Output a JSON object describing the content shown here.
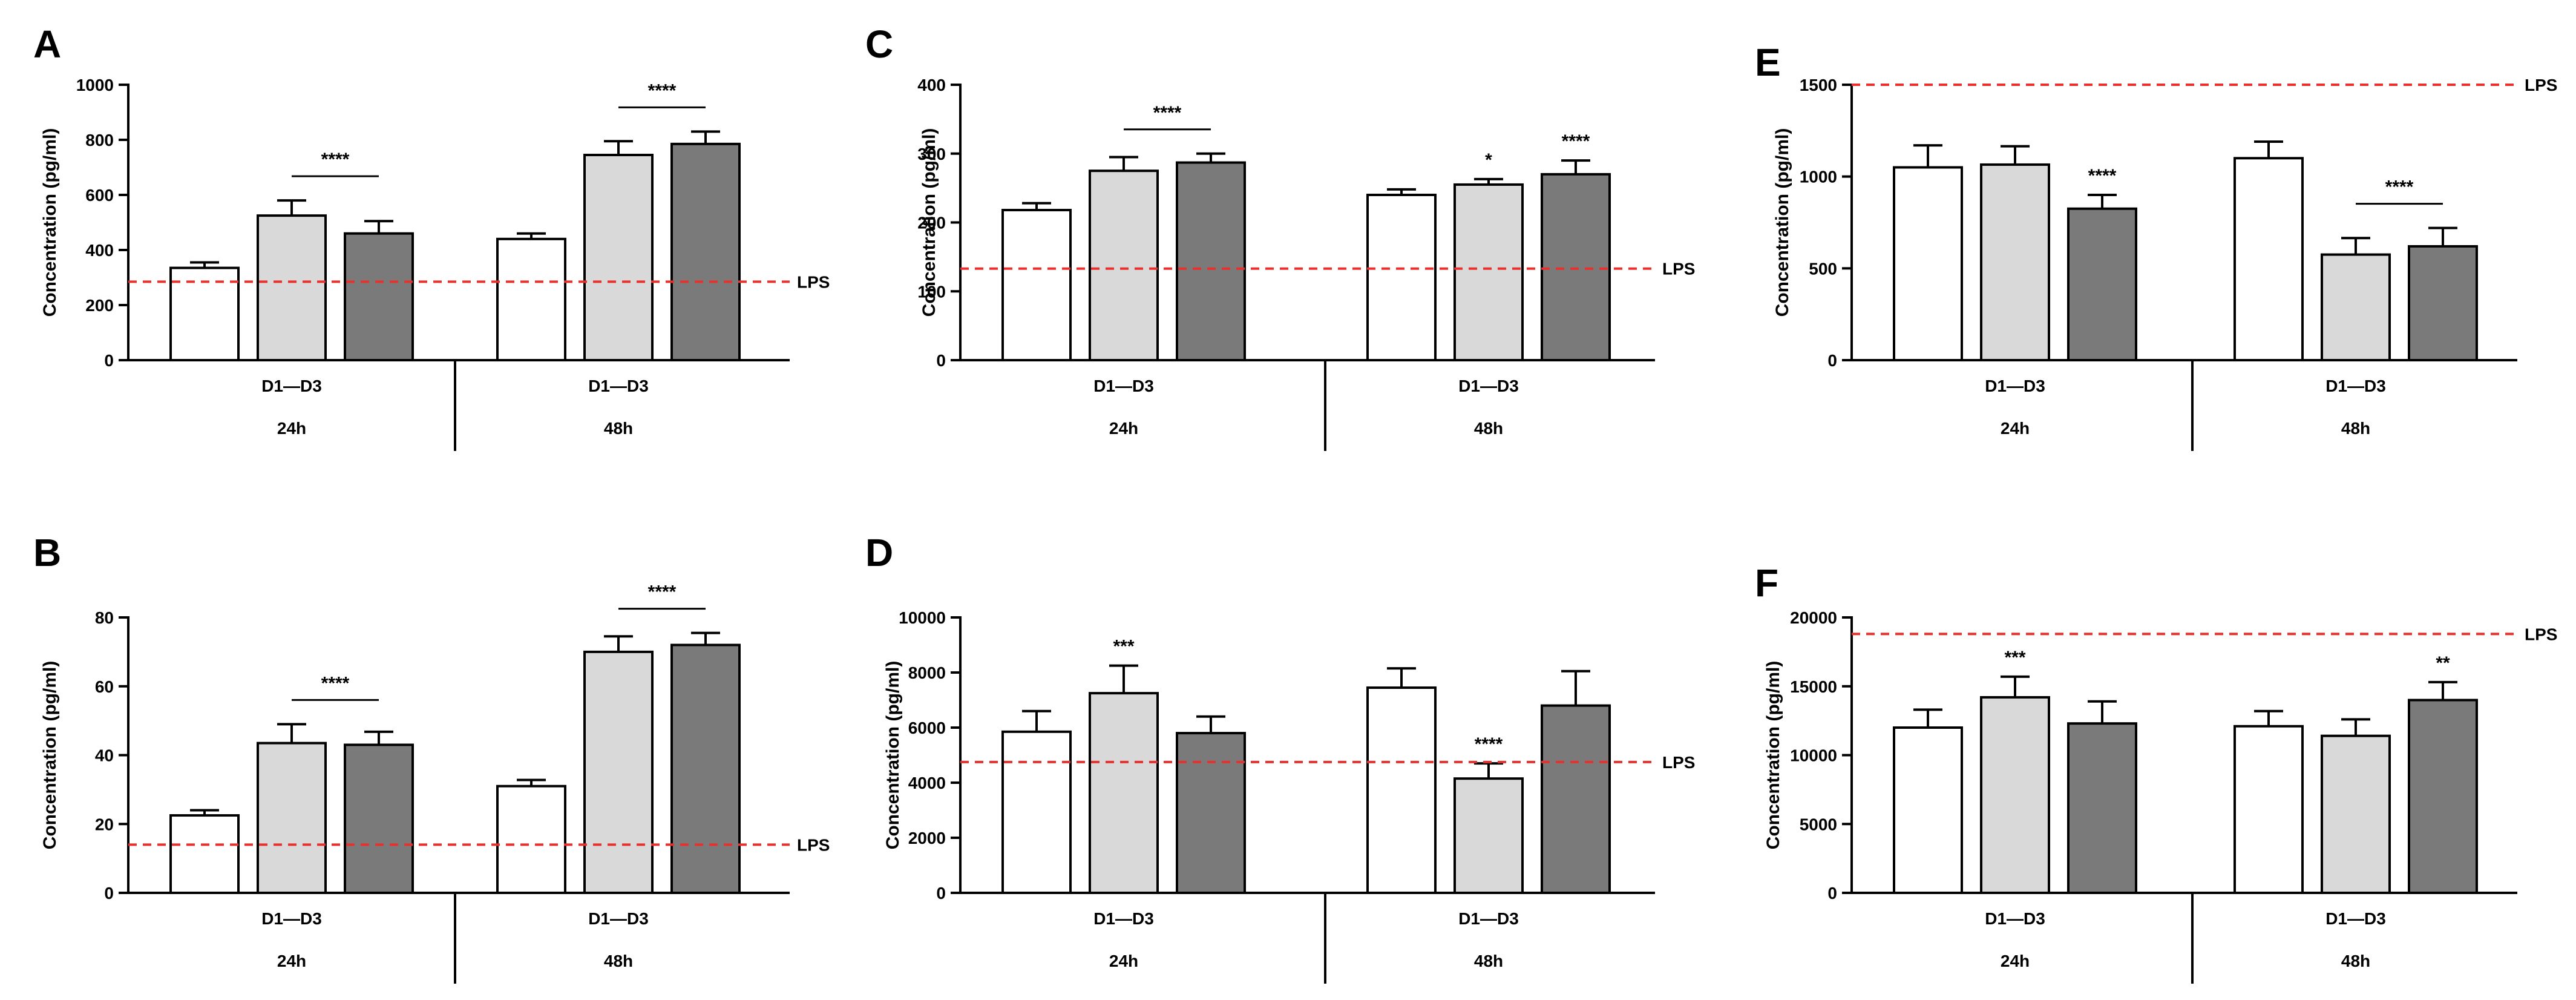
{
  "figure": {
    "bar_colors": [
      "#ffffff",
      "#d9d9d9",
      "#7a7a7a"
    ],
    "lps_color": "#e8302c"
  },
  "chart_data": [
    {
      "panel": "A",
      "type": "bar",
      "ylabel": "Concentration (pg/ml)",
      "ylim": [
        0,
        1000
      ],
      "yticks": [
        0,
        200,
        400,
        600,
        800,
        1000
      ],
      "groups": [
        "24h",
        "48h"
      ],
      "group_sublabel": "D1—D3",
      "series": [
        {
          "name": "D1",
          "values": [
            335,
            440
          ],
          "errors": [
            20,
            20
          ]
        },
        {
          "name": "D2",
          "values": [
            525,
            745
          ],
          "errors": [
            55,
            50
          ]
        },
        {
          "name": "D3",
          "values": [
            460,
            785
          ],
          "errors": [
            45,
            45
          ]
        }
      ],
      "lps": {
        "label": "LPS",
        "value": 285
      },
      "annotations": [
        {
          "text": "****",
          "group": 0,
          "type": "bracket",
          "from": 1,
          "to": 2
        },
        {
          "text": "****",
          "group": 1,
          "type": "bracket",
          "from": 1,
          "to": 2
        }
      ]
    },
    {
      "panel": "B",
      "type": "bar",
      "ylabel": "Concentration (pg/ml)",
      "ylim": [
        0,
        80
      ],
      "yticks": [
        0,
        20,
        40,
        60,
        80
      ],
      "groups": [
        "24h",
        "48h"
      ],
      "group_sublabel": "D1—D3",
      "series": [
        {
          "name": "D1",
          "values": [
            22.5,
            31
          ],
          "errors": [
            1.5,
            1.8
          ]
        },
        {
          "name": "D2",
          "values": [
            43.5,
            70
          ],
          "errors": [
            5.5,
            4.5
          ]
        },
        {
          "name": "D3",
          "values": [
            43,
            72
          ],
          "errors": [
            3.8,
            3.5
          ]
        }
      ],
      "lps": {
        "label": "LPS",
        "value": 14
      },
      "annotations": [
        {
          "text": "****",
          "group": 0,
          "type": "bracket",
          "from": 1,
          "to": 2
        },
        {
          "text": "****",
          "group": 1,
          "type": "bracket",
          "from": 1,
          "to": 2
        }
      ]
    },
    {
      "panel": "C",
      "type": "bar",
      "ylabel": "Concentration (pg/ml)",
      "ylim": [
        0,
        400
      ],
      "yticks": [
        0,
        100,
        200,
        300,
        400
      ],
      "groups": [
        "24h",
        "48h"
      ],
      "group_sublabel": "D1—D3",
      "series": [
        {
          "name": "D1",
          "values": [
            218,
            240
          ],
          "errors": [
            10,
            8
          ]
        },
        {
          "name": "D2",
          "values": [
            275,
            255
          ],
          "errors": [
            20,
            8
          ]
        },
        {
          "name": "D3",
          "values": [
            287,
            270
          ],
          "errors": [
            13,
            20
          ]
        }
      ],
      "lps": {
        "label": "LPS",
        "value": 133
      },
      "annotations": [
        {
          "text": "****",
          "group": 0,
          "type": "bracket",
          "from": 1,
          "to": 2
        },
        {
          "text": "*",
          "group": 1,
          "type": "bar",
          "bar": 1
        },
        {
          "text": "****",
          "group": 1,
          "type": "bar",
          "bar": 2
        }
      ]
    },
    {
      "panel": "D",
      "type": "bar",
      "ylabel": "Concentration (pg/ml)",
      "ylim": [
        0,
        10000
      ],
      "yticks": [
        0,
        2000,
        4000,
        6000,
        8000,
        10000
      ],
      "groups": [
        "24h",
        "48h"
      ],
      "group_sublabel": "D1—D3",
      "series": [
        {
          "name": "D1",
          "values": [
            5850,
            7450
          ],
          "errors": [
            750,
            700
          ]
        },
        {
          "name": "D2",
          "values": [
            7250,
            4150
          ],
          "errors": [
            1000,
            550
          ]
        },
        {
          "name": "D3",
          "values": [
            5800,
            6800
          ],
          "errors": [
            600,
            1250
          ]
        }
      ],
      "lps": {
        "label": "LPS",
        "value": 4750
      },
      "annotations": [
        {
          "text": "***",
          "group": 0,
          "type": "bar",
          "bar": 1
        },
        {
          "text": "****",
          "group": 1,
          "type": "bar",
          "bar": 1
        }
      ]
    },
    {
      "panel": "E",
      "type": "bar",
      "ylabel": "Concentration (pg/ml)",
      "ylim": [
        0,
        1500
      ],
      "yticks": [
        0,
        500,
        1000,
        1500
      ],
      "groups": [
        "24h",
        "48h"
      ],
      "group_sublabel": "D1—D3",
      "series": [
        {
          "name": "D1",
          "values": [
            1050,
            1100
          ],
          "errors": [
            120,
            90
          ]
        },
        {
          "name": "D2",
          "values": [
            1065,
            575
          ],
          "errors": [
            100,
            90
          ]
        },
        {
          "name": "D3",
          "values": [
            825,
            620
          ],
          "errors": [
            75,
            100
          ]
        }
      ],
      "lps": {
        "label": "LPS",
        "value": 1500
      },
      "annotations": [
        {
          "text": "****",
          "group": 0,
          "type": "bar",
          "bar": 2
        },
        {
          "text": "****",
          "group": 1,
          "type": "bracket",
          "from": 1,
          "to": 2
        }
      ]
    },
    {
      "panel": "F",
      "type": "bar",
      "ylabel": "Concentration (pg/ml)",
      "ylim": [
        0,
        20000
      ],
      "yticks": [
        0,
        5000,
        10000,
        15000,
        20000
      ],
      "groups": [
        "24h",
        "48h"
      ],
      "group_sublabel": "D1—D3",
      "series": [
        {
          "name": "D1",
          "values": [
            12000,
            12100
          ],
          "errors": [
            1300,
            1100
          ]
        },
        {
          "name": "D2",
          "values": [
            14200,
            11400
          ],
          "errors": [
            1500,
            1200
          ]
        },
        {
          "name": "D3",
          "values": [
            12300,
            14000
          ],
          "errors": [
            1600,
            1300
          ]
        }
      ],
      "lps": {
        "label": "LPS",
        "value": 18800
      },
      "annotations": [
        {
          "text": "***",
          "group": 0,
          "type": "bar",
          "bar": 1
        },
        {
          "text": "**",
          "group": 1,
          "type": "bar",
          "bar": 2
        }
      ]
    }
  ]
}
